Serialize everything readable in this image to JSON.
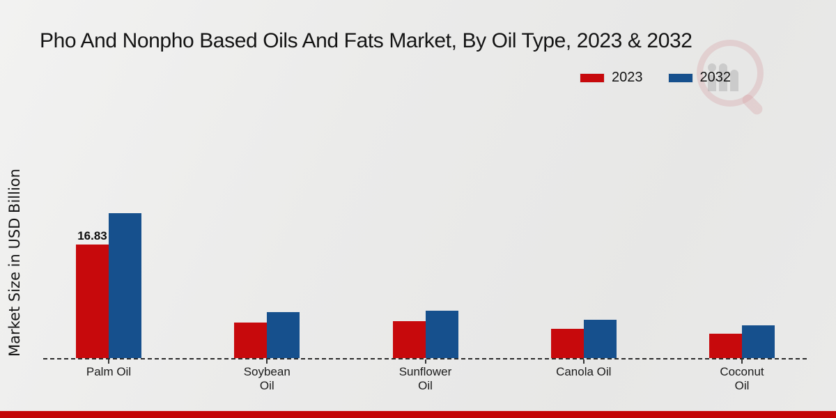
{
  "page": {
    "background_color": "#ebebea",
    "footer_bar_color": "#c30506"
  },
  "header": {
    "title": "Pho And Nonpho Based Oils And Fats Market, By Oil Type, 2023 & 2032"
  },
  "watermark": {
    "icon": "magnifier-bar-chart-logo"
  },
  "chart_data": {
    "type": "bar",
    "title": "Pho And Nonpho Based Oils And Fats Market, By Oil Type, 2023 & 2032",
    "xlabel": "",
    "ylabel": "Market Size in USD Billion",
    "unit": "USD Billion",
    "categories": [
      "Palm Oil",
      "Soybean\nOil",
      "Sunflower\nOil",
      "Canola Oil",
      "Coconut\nOil"
    ],
    "series": [
      {
        "name": "2023",
        "color": "#c7090c",
        "values": [
          16.83,
          5.3,
          5.5,
          4.3,
          3.6
        ]
      },
      {
        "name": "2032",
        "color": "#16508d",
        "values": [
          21.5,
          6.8,
          7.0,
          5.7,
          4.9
        ]
      }
    ],
    "bar_labels": [
      {
        "series_index": 0,
        "category_index": 0,
        "text": "16.83"
      }
    ],
    "ylim": [
      0,
      22
    ],
    "grid": false,
    "axis_style": "dashed-baseline-only",
    "legend_position": "top-right"
  }
}
